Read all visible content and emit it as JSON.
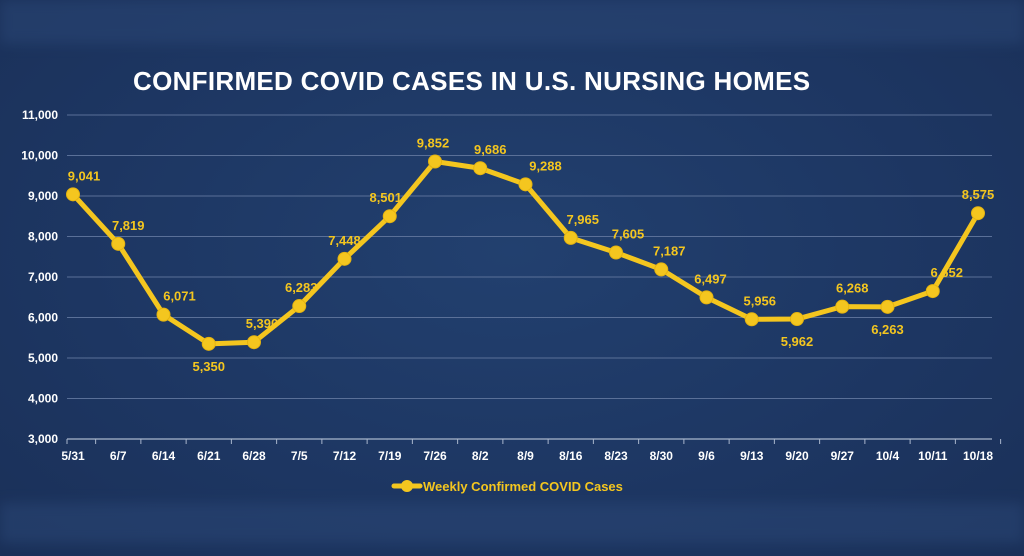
{
  "chart_data": {
    "type": "line",
    "title": "CONFIRMED COVID CASES IN U.S. NURSING HOMES",
    "categories": [
      "5/31",
      "6/7",
      "6/14",
      "6/21",
      "6/28",
      "7/5",
      "7/12",
      "7/19",
      "7/26",
      "8/2",
      "8/9",
      "8/16",
      "8/23",
      "8/30",
      "9/6",
      "9/13",
      "9/20",
      "9/27",
      "10/4",
      "10/11",
      "10/18"
    ],
    "series": [
      {
        "name": "Weekly Confirmed COVID Cases",
        "values": [
          9041,
          7819,
          6071,
          5350,
          5390,
          6283,
          7448,
          8501,
          9852,
          9686,
          9288,
          7965,
          7605,
          7187,
          6497,
          5956,
          5962,
          6268,
          6263,
          6652,
          8575
        ],
        "labels": [
          "9,041",
          "7,819",
          "6,071",
          "5,350",
          "5,390",
          "6,283",
          "7,448",
          "8,501",
          "9,852",
          "9,686",
          "9,288",
          "7,965",
          "7,605",
          "7,187",
          "6,497",
          "5,956",
          "5,962",
          "6,268",
          "6,263",
          "6,652",
          "8,575"
        ],
        "color": "#f4c61f"
      }
    ],
    "ylim": [
      3000,
      11000
    ],
    "yticks": [
      "3,000",
      "4,000",
      "5,000",
      "6,000",
      "7,000",
      "8,000",
      "9,000",
      "10,000",
      "11,000"
    ],
    "grid": true,
    "legend": "bottom",
    "background": "#1e3763",
    "gridline_color": "#5a7098"
  }
}
